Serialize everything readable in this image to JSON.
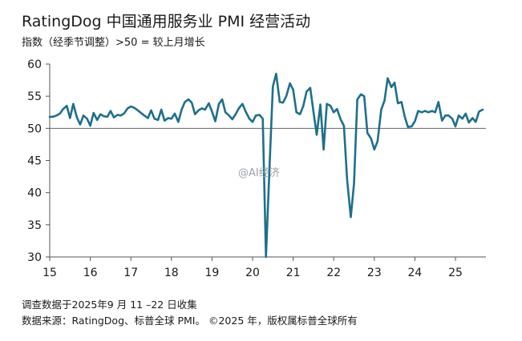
{
  "header": {
    "title": "RatingDog 中国通用服务业 PMI 经营活动",
    "subtitle": "指数（经季节调整）>50 = 较上月增长"
  },
  "footer": {
    "note": "调查数据于2025年9 月 11 –22 日收集",
    "source": "数据来源：RatingDog、标普全球 PMI。 ©2025 年，版权属标普全球所有"
  },
  "watermark": {
    "text": "@AI经济"
  },
  "chart_data": {
    "type": "line",
    "title": "RatingDog 中国通用服务业 PMI 经营活动",
    "ylim": [
      30,
      60
    ],
    "yticks": [
      30,
      35,
      40,
      45,
      50,
      55,
      60
    ],
    "xlim": [
      2015.0,
      2025.75
    ],
    "xticks": [
      "15",
      "16",
      "17",
      "18",
      "19",
      "20",
      "21",
      "22",
      "23",
      "24",
      "25"
    ],
    "reference_line": 50,
    "line_color": "#1f6f8b",
    "series": [
      {
        "name": "",
        "x": [
          2015.0,
          2015.08,
          2015.17,
          2015.25,
          2015.33,
          2015.42,
          2015.5,
          2015.58,
          2015.67,
          2015.75,
          2015.83,
          2015.92,
          2016.0,
          2016.08,
          2016.17,
          2016.25,
          2016.33,
          2016.42,
          2016.5,
          2016.58,
          2016.67,
          2016.75,
          2016.83,
          2016.92,
          2017.0,
          2017.08,
          2017.17,
          2017.25,
          2017.33,
          2017.42,
          2017.5,
          2017.58,
          2017.67,
          2017.75,
          2017.83,
          2017.92,
          2018.0,
          2018.08,
          2018.17,
          2018.25,
          2018.33,
          2018.42,
          2018.5,
          2018.58,
          2018.67,
          2018.75,
          2018.83,
          2018.92,
          2019.0,
          2019.08,
          2019.17,
          2019.25,
          2019.33,
          2019.42,
          2019.5,
          2019.58,
          2019.67,
          2019.75,
          2019.83,
          2019.92,
          2020.0,
          2020.08,
          2020.17,
          2020.25,
          2020.33,
          2020.42,
          2020.5,
          2020.58,
          2020.67,
          2020.75,
          2020.83,
          2020.92,
          2021.0,
          2021.08,
          2021.17,
          2021.25,
          2021.33,
          2021.42,
          2021.5,
          2021.58,
          2021.67,
          2021.75,
          2021.83,
          2021.92,
          2022.0,
          2022.08,
          2022.17,
          2022.25,
          2022.33,
          2022.42,
          2022.5,
          2022.58,
          2022.67,
          2022.75,
          2022.83,
          2022.92,
          2023.0,
          2023.08,
          2023.17,
          2023.25,
          2023.33,
          2023.42,
          2023.5,
          2023.58,
          2023.67,
          2023.75,
          2023.83,
          2023.92,
          2024.0,
          2024.08,
          2024.17,
          2024.25,
          2024.33,
          2024.42,
          2024.5,
          2024.58,
          2024.67,
          2024.75,
          2024.83,
          2024.92,
          2025.0,
          2025.08,
          2025.17,
          2025.25,
          2025.33,
          2025.42,
          2025.5,
          2025.58,
          2025.67
        ],
        "values": [
          51.8,
          51.8,
          52.0,
          52.3,
          53.0,
          53.5,
          51.6,
          53.8,
          51.7,
          50.6,
          52.0,
          51.5,
          50.4,
          52.4,
          51.3,
          52.2,
          51.9,
          51.8,
          52.7,
          51.7,
          52.1,
          52.0,
          52.3,
          53.1,
          53.4,
          53.2,
          52.8,
          52.4,
          52.0,
          51.6,
          52.8,
          51.5,
          51.3,
          52.9,
          51.2,
          51.6,
          51.5,
          52.3,
          51.0,
          52.9,
          54.1,
          54.5,
          54.0,
          52.2,
          52.8,
          53.1,
          52.9,
          53.9,
          52.6,
          51.1,
          53.8,
          54.5,
          52.5,
          52.0,
          51.4,
          52.2,
          53.2,
          53.8,
          52.6,
          51.5,
          51.0,
          52.0,
          52.1,
          51.5,
          30.0,
          44.5,
          56.5,
          58.5,
          54.1,
          54.0,
          55.0,
          57.0,
          56.0,
          52.5,
          52.2,
          53.5,
          55.7,
          56.3,
          52.6,
          49.0,
          53.7,
          46.7,
          53.8,
          53.5,
          52.5,
          53.0,
          51.4,
          50.4,
          42.0,
          36.2,
          41.4,
          54.5,
          55.3,
          55.0,
          49.3,
          48.4,
          46.7,
          48.0,
          52.9,
          54.3,
          57.8,
          56.4,
          57.1,
          53.9,
          54.1,
          51.8,
          50.2,
          50.3,
          51.1,
          52.7,
          52.5,
          52.7,
          52.5,
          52.7,
          52.5,
          54.1,
          51.2,
          52.0,
          52.0,
          51.5,
          50.3,
          52.0,
          51.5,
          52.3,
          50.9,
          51.6,
          51.0,
          52.6,
          52.9
        ]
      }
    ]
  }
}
